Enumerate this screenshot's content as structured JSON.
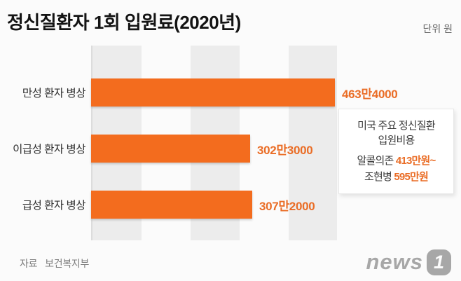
{
  "header": {
    "title": "정신질환자 1회 입원료(2020년)",
    "unit": "단위 원"
  },
  "chart_data": {
    "type": "bar",
    "orientation": "horizontal",
    "title": "정신질환자 1회 입원료(2020년)",
    "unit": "원",
    "categories": [
      "만성 환자 병상",
      "이급성 환자 병상",
      "급성 환자 병상"
    ],
    "values": [
      4634000,
      3023000,
      3072000
    ],
    "value_labels": [
      "463만4000",
      "302만3000",
      "307만2000"
    ],
    "xlim": [
      0,
      5000000
    ],
    "grid": "vertical-bands",
    "colors": {
      "bar": "#f36c1e",
      "value_text": "#ea6d26"
    },
    "source": "보건복지부"
  },
  "annotation": {
    "title_line1": "미국 주요 정신질환",
    "title_line2": "입원비용",
    "items": [
      {
        "label": "알콜의존",
        "value": "413만원~"
      },
      {
        "label": "조현병",
        "value": "595만원"
      }
    ]
  },
  "footer": {
    "source_label": "자료",
    "source_value": "보건복지부"
  },
  "logo": {
    "text": "news",
    "badge": "1"
  }
}
